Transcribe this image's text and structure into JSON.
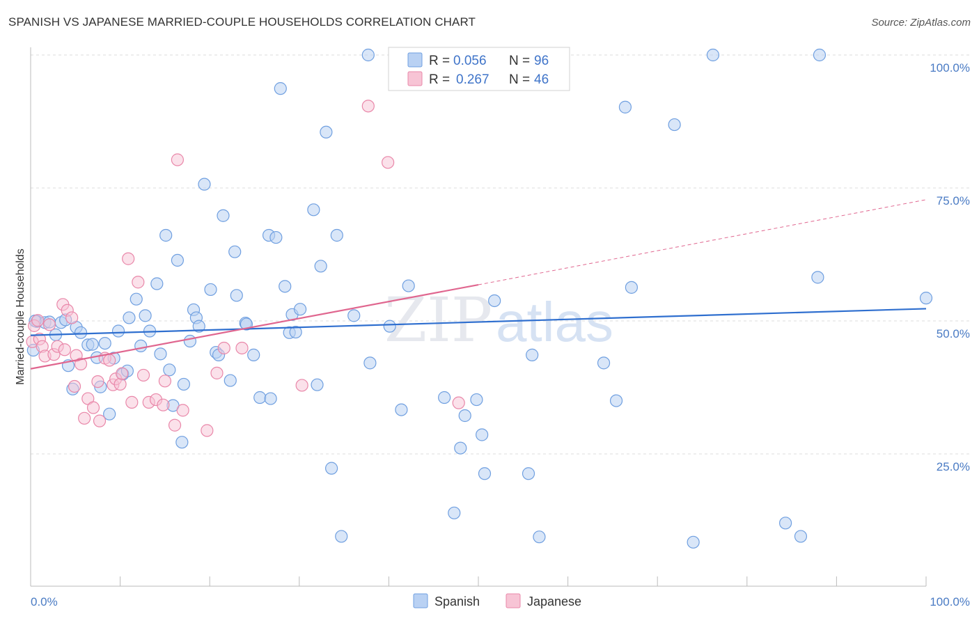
{
  "title": "SPANISH VS JAPANESE MARRIED-COUPLE HOUSEHOLDS CORRELATION CHART",
  "source": "Source: ZipAtlas.com",
  "watermark": {
    "zip": "ZIP",
    "atlas": "atlas"
  },
  "colors": {
    "spanish": "#6f9fe0",
    "spanish_fill": "#b9d1f3",
    "spanish_line": "#2f6fcf",
    "japanese": "#e987a9",
    "japanese_fill": "#f7c4d5",
    "japanese_line": "#e0668f",
    "grid": "#dddddd",
    "axis_text": "#4a7bc4"
  },
  "legend": {
    "rows": [
      {
        "r_label": "R =",
        "r_value": "0.056",
        "n_label": "N =",
        "n_value": "96"
      },
      {
        "r_label": "R =",
        "r_value": "0.267",
        "n_label": "N =",
        "n_value": "46"
      }
    ]
  },
  "bottom_legend": [
    "Spanish",
    "Japanese"
  ],
  "chart_data": {
    "type": "scatter",
    "title": "SPANISH VS JAPANESE MARRIED-COUPLE HOUSEHOLDS CORRELATION CHART",
    "xlabel": "",
    "ylabel": "Married-couple Households",
    "xlim": [
      0,
      100
    ],
    "ylim": [
      0,
      102
    ],
    "x_tick_labels": [
      "0.0%",
      "100.0%"
    ],
    "y_ticks": [
      25,
      50,
      75,
      100
    ],
    "y_tick_labels": [
      "25.0%",
      "50.0%",
      "75.0%",
      "100.0%"
    ],
    "grid": true,
    "legend_position": "top-center",
    "series": [
      {
        "name": "Spanish",
        "trend": {
          "x0": 0,
          "y0": 47.3,
          "x1": 100,
          "y1": 52.3
        },
        "points": [
          [
            0.7,
            49.9
          ],
          [
            1.6,
            49.7
          ],
          [
            2.1,
            49.8
          ],
          [
            2.8,
            47.4
          ],
          [
            3.4,
            49.7
          ],
          [
            3.9,
            50.2
          ],
          [
            4.2,
            41.6
          ],
          [
            4.7,
            37.2
          ],
          [
            5.1,
            48.8
          ],
          [
            5.6,
            47.8
          ],
          [
            6.4,
            45.5
          ],
          [
            6.9,
            45.6
          ],
          [
            7.4,
            43.1
          ],
          [
            7.8,
            37.6
          ],
          [
            8.3,
            45.8
          ],
          [
            8.8,
            32.5
          ],
          [
            9.3,
            43.0
          ],
          [
            9.8,
            48.1
          ],
          [
            10.3,
            40.0
          ],
          [
            10.8,
            40.6
          ],
          [
            11.0,
            50.6
          ],
          [
            11.8,
            54.1
          ],
          [
            12.3,
            45.3
          ],
          [
            12.8,
            51.0
          ],
          [
            13.3,
            48.1
          ],
          [
            14.1,
            57.0
          ],
          [
            14.5,
            43.8
          ],
          [
            15.1,
            66.1
          ],
          [
            15.5,
            40.8
          ],
          [
            15.9,
            34.1
          ],
          [
            16.4,
            61.4
          ],
          [
            16.9,
            27.2
          ],
          [
            17.1,
            38.1
          ],
          [
            17.8,
            46.2
          ],
          [
            18.2,
            52.1
          ],
          [
            18.5,
            50.6
          ],
          [
            18.8,
            49.0
          ],
          [
            19.4,
            75.7
          ],
          [
            20.1,
            55.9
          ],
          [
            20.7,
            44.1
          ],
          [
            21.0,
            43.6
          ],
          [
            21.5,
            69.8
          ],
          [
            22.3,
            38.8
          ],
          [
            22.8,
            63.0
          ],
          [
            23.0,
            54.8
          ],
          [
            24.0,
            49.6
          ],
          [
            24.1,
            49.4
          ],
          [
            24.9,
            43.6
          ],
          [
            25.6,
            35.6
          ],
          [
            26.6,
            66.1
          ],
          [
            26.8,
            35.4
          ],
          [
            27.4,
            65.7
          ],
          [
            27.9,
            93.7
          ],
          [
            28.4,
            56.5
          ],
          [
            28.9,
            47.8
          ],
          [
            29.2,
            51.2
          ],
          [
            29.6,
            47.9
          ],
          [
            30.1,
            52.2
          ],
          [
            31.6,
            70.9
          ],
          [
            32.0,
            38.0
          ],
          [
            32.4,
            60.3
          ],
          [
            33.0,
            85.5
          ],
          [
            33.6,
            22.3
          ],
          [
            34.2,
            66.1
          ],
          [
            34.7,
            9.5
          ],
          [
            36.1,
            51.0
          ],
          [
            37.7,
            100.0
          ],
          [
            37.9,
            42.1
          ],
          [
            40.1,
            49.0
          ],
          [
            41.4,
            33.3
          ],
          [
            42.2,
            56.6
          ],
          [
            46.2,
            35.6
          ],
          [
            47.3,
            13.9
          ],
          [
            48.0,
            26.1
          ],
          [
            48.5,
            32.2
          ],
          [
            49.8,
            35.2
          ],
          [
            50.4,
            28.6
          ],
          [
            50.7,
            21.3
          ],
          [
            51.8,
            53.8
          ],
          [
            55.6,
            21.3
          ],
          [
            56.0,
            43.6
          ],
          [
            56.8,
            9.4
          ],
          [
            64.0,
            42.1
          ],
          [
            65.4,
            35.0
          ],
          [
            66.4,
            90.2
          ],
          [
            67.1,
            56.3
          ],
          [
            71.9,
            86.9
          ],
          [
            74.0,
            8.4
          ],
          [
            76.2,
            100.0
          ],
          [
            84.3,
            12.0
          ],
          [
            86.0,
            9.5
          ],
          [
            87.9,
            58.2
          ],
          [
            88.1,
            100.0
          ],
          [
            100.0,
            54.3
          ],
          [
            0.3,
            44.5
          ],
          [
            0.5,
            50.0
          ]
        ]
      },
      {
        "name": "Japanese",
        "trend": {
          "x0": 0,
          "y0": 41.0,
          "x1": 50,
          "y1": 56.8,
          "dashed_x1": 100,
          "dashed_y1": 72.8
        },
        "points": [
          [
            0.2,
            46.1
          ],
          [
            0.4,
            49.1
          ],
          [
            0.8,
            50.1
          ],
          [
            1.0,
            46.6
          ],
          [
            1.3,
            45.2
          ],
          [
            1.6,
            43.4
          ],
          [
            2.1,
            49.3
          ],
          [
            2.6,
            43.7
          ],
          [
            3.0,
            45.2
          ],
          [
            3.6,
            53.1
          ],
          [
            4.1,
            52.0
          ],
          [
            4.6,
            50.6
          ],
          [
            4.9,
            37.7
          ],
          [
            5.1,
            43.5
          ],
          [
            5.6,
            41.9
          ],
          [
            6.0,
            31.7
          ],
          [
            6.4,
            35.4
          ],
          [
            7.0,
            33.7
          ],
          [
            7.5,
            38.6
          ],
          [
            7.7,
            31.2
          ],
          [
            8.3,
            43.0
          ],
          [
            8.8,
            42.6
          ],
          [
            9.2,
            38.0
          ],
          [
            9.5,
            39.1
          ],
          [
            10.0,
            38.1
          ],
          [
            10.2,
            40.1
          ],
          [
            10.9,
            61.7
          ],
          [
            11.3,
            34.7
          ],
          [
            12.0,
            57.3
          ],
          [
            12.6,
            39.8
          ],
          [
            13.2,
            34.7
          ],
          [
            14.0,
            35.2
          ],
          [
            14.8,
            34.2
          ],
          [
            15.0,
            38.7
          ],
          [
            16.1,
            30.4
          ],
          [
            16.4,
            80.3
          ],
          [
            17.0,
            33.2
          ],
          [
            19.7,
            29.4
          ],
          [
            20.8,
            40.2
          ],
          [
            21.6,
            44.9
          ],
          [
            23.6,
            44.9
          ],
          [
            30.3,
            37.9
          ],
          [
            37.7,
            90.4
          ],
          [
            39.9,
            79.8
          ],
          [
            47.8,
            34.6
          ],
          [
            3.8,
            44.6
          ]
        ]
      }
    ]
  }
}
